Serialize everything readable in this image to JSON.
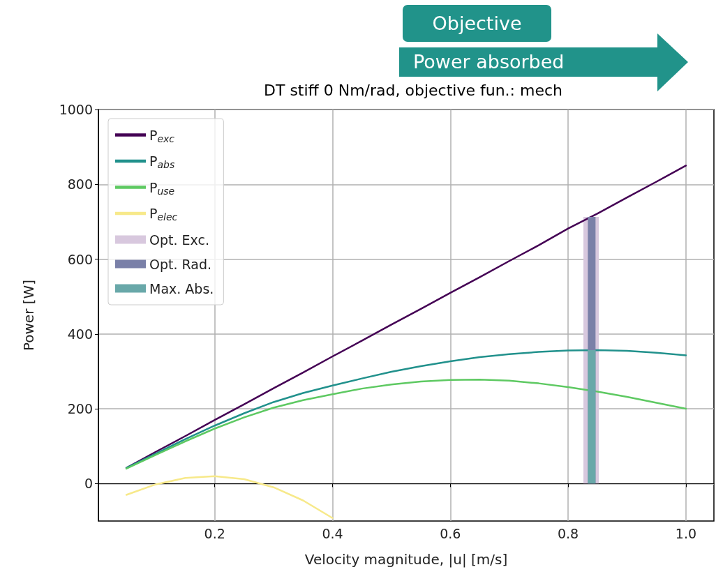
{
  "chart_data": {
    "type": "line",
    "title": "DT stiff 0 Nm/rad, objective fun.: mech",
    "xlabel": "Velocity magnitude, |u| [m/s]",
    "ylabel": "Power [W]",
    "annotations": [
      "Objective",
      "Power absorbed"
    ],
    "x": [
      0.05,
      0.1,
      0.15,
      0.2,
      0.25,
      0.3,
      0.35,
      0.4,
      0.45,
      0.5,
      0.55,
      0.6,
      0.65,
      0.7,
      0.75,
      0.8,
      0.85,
      0.9,
      0.95,
      1.0
    ],
    "series": [
      {
        "name": "P$_{exc}$",
        "color": "#440154",
        "values": [
          42,
          85,
          127,
          170,
          212,
          255,
          297,
          340,
          382,
          425,
          467,
          510,
          552,
          595,
          637,
          682,
          722,
          765,
          807,
          850
        ]
      },
      {
        "name": "P$_{abs}$",
        "color": "#21918c",
        "values": [
          42,
          80,
          119,
          155,
          188,
          218,
          242,
          262,
          281,
          299,
          314,
          327,
          338,
          346,
          352,
          356,
          357,
          355,
          350,
          343
        ]
      },
      {
        "name": "P$_{use}$",
        "color": "#5ec962",
        "values": [
          40,
          77,
          113,
          147,
          177,
          203,
          223,
          239,
          254,
          265,
          273,
          277,
          278,
          275,
          268,
          258,
          246,
          232,
          216,
          200
        ]
      },
      {
        "name": "P$_{elec}$",
        "color": "#f7e98a",
        "values": [
          -30,
          -2,
          15,
          20,
          12,
          -10,
          -45,
          -92,
          null,
          null,
          null,
          null,
          null,
          null,
          null,
          null,
          null,
          null,
          null,
          null
        ]
      },
      {
        "name": "Opt. Exc.",
        "type": "area",
        "color": "#d8c8de",
        "x": [
          0.826,
          0.852
        ],
        "values": [
          713,
          713
        ]
      },
      {
        "name": "Opt. Rad.",
        "color": "#7a80a8",
        "x": [
          0.84,
          0.84
        ],
        "values": [
          0,
          713
        ]
      },
      {
        "name": "Max. Abs.",
        "color": "#69a8a9",
        "x": [
          0.84,
          0.84
        ],
        "values": [
          0,
          357
        ]
      }
    ],
    "xlim": [
      0.0025,
      1.0475
    ],
    "xticks": [
      0.2,
      0.4,
      0.6,
      0.8,
      {
        "value": 1,
        "label": "1.0"
      }
    ],
    "ylim": [
      -100,
      1000
    ],
    "yticks": [
      0,
      200,
      400,
      600,
      800,
      1000
    ],
    "grid": true,
    "legend": "top left",
    "marker": "none",
    "line_style": "solid"
  }
}
